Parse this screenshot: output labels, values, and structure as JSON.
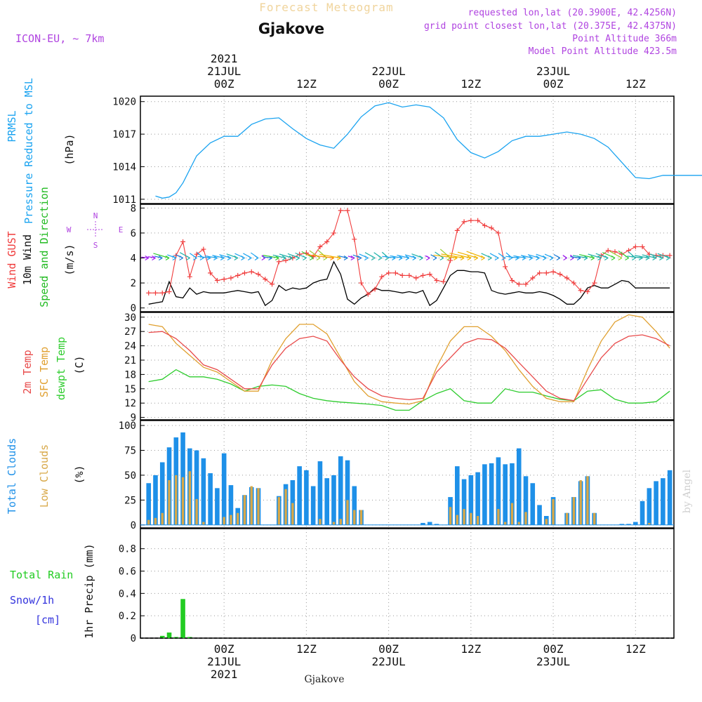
{
  "header": {
    "chart_title": "Forecast Meteogram",
    "location": "Gjakove",
    "model": "ICON-EU, ~ 7km",
    "requested": "requested lon,lat (20.3900E, 42.4256N)",
    "grid_point": "grid point closest lon,lat (20.375E, 42.4375N)",
    "point_altitude": "Point Altitude 366m",
    "model_altitude": "Model Point Altitude 423.5m",
    "bottom_location": "Gjakove",
    "credit": "by Angel"
  },
  "colors": {
    "pressure": "#1aa3f0",
    "gust": "#f03c3c",
    "wind10m": "#000000",
    "dir_green": "#22bb22",
    "temp2m": "#e84a4a",
    "sfc": "#e0a030",
    "dewpt": "#2ecc2e",
    "total_clouds": "#1e90e8",
    "low_clouds": "#d8a848",
    "rain": "#22cc22",
    "snow": "#3333dd",
    "purple": "#b044e0",
    "title": "#f0d49c"
  },
  "chart_data": [
    {
      "type": "line",
      "title": "PRMSL Pressure Reduced to MSL",
      "ylabel_lines": [
        "PRMSL",
        "Pressure Reduced to MSL"
      ],
      "unit": "(hPa)",
      "ylim": [
        1010.6,
        1020.5
      ],
      "yticks": [
        1011,
        1014,
        1017,
        1020
      ],
      "x_hours": [
        -10,
        -9,
        -8,
        -7,
        -6,
        -4,
        -2,
        0,
        2,
        4,
        6,
        8,
        10,
        12,
        14,
        16,
        18,
        20,
        22,
        24,
        26,
        28,
        30,
        32,
        34,
        36,
        38,
        40,
        42,
        44,
        46,
        48,
        50,
        52,
        54,
        56,
        58,
        60,
        62,
        64,
        66,
        68,
        70,
        72
      ],
      "series": [
        {
          "name": "PRMSL",
          "values": [
            1011.3,
            1011.1,
            1011.2,
            1011.6,
            1012.5,
            1015.0,
            1016.2,
            1016.8,
            1016.8,
            1017.9,
            1018.4,
            1018.5,
            1017.5,
            1016.6,
            1016.0,
            1015.7,
            1017.0,
            1018.6,
            1019.6,
            1019.9,
            1019.5,
            1019.7,
            1019.5,
            1018.5,
            1016.5,
            1015.3,
            1014.8,
            1015.4,
            1016.4,
            1016.8,
            1016.8,
            1017.0,
            1017.2,
            1017.0,
            1016.6,
            1015.8,
            1014.4,
            1013.0,
            1012.9,
            1013.2,
            1013.2,
            1013.2,
            1013.2,
            1013.2
          ]
        }
      ]
    },
    {
      "type": "line",
      "title": "Wind GUST, 10m Wind Speed and Direction",
      "ylabel_lines": [
        "Wind GUST",
        "10m Wind",
        "Speed and Direction"
      ],
      "unit": "(m/s)",
      "compass": {
        "north": "N",
        "south": "S",
        "east": "E",
        "west": "W"
      },
      "ylim": [
        -0.3,
        8.3
      ],
      "yticks": [
        0,
        2,
        4,
        6,
        8
      ],
      "x_hours": [
        -11,
        -10,
        -9,
        -8,
        -7,
        -6,
        -5,
        -4,
        -3,
        -2,
        -1,
        0,
        1,
        2,
        3,
        4,
        5,
        6,
        7,
        8,
        9,
        10,
        11,
        12,
        13,
        14,
        15,
        16,
        17,
        18,
        19,
        20,
        21,
        22,
        23,
        24,
        25,
        26,
        27,
        28,
        29,
        30,
        31,
        32,
        33,
        34,
        35,
        36,
        37,
        38,
        39,
        40,
        41,
        42,
        43,
        44,
        45,
        46,
        47,
        48,
        49,
        50,
        51,
        52,
        53,
        54,
        55,
        56,
        57,
        58,
        59,
        60,
        61,
        62,
        63,
        64,
        65
      ],
      "series": [
        {
          "name": "Wind GUST",
          "values": [
            1.2,
            1.2,
            1.2,
            1.3,
            4.2,
            5.3,
            2.5,
            4.3,
            4.7,
            2.8,
            2.2,
            2.3,
            2.4,
            2.6,
            2.8,
            2.9,
            2.7,
            2.3,
            1.9,
            3.7,
            3.8,
            4.0,
            4.3,
            4.4,
            4.1,
            4.9,
            5.3,
            6.0,
            7.8,
            7.8,
            5.5,
            2.0,
            1.1,
            1.5,
            2.5,
            2.8,
            2.8,
            2.6,
            2.6,
            2.4,
            2.6,
            2.7,
            2.2,
            2.1,
            3.8,
            6.2,
            6.9,
            7.0,
            7.0,
            6.6,
            6.4,
            6.0,
            3.3,
            2.2,
            1.9,
            1.9,
            2.4,
            2.8,
            2.8,
            2.9,
            2.7,
            2.4,
            2.0,
            1.4,
            1.3,
            2.0,
            4.2,
            4.6,
            4.5,
            4.3,
            4.6,
            4.9,
            4.9,
            4.3,
            4.2,
            4.2,
            4.2
          ]
        },
        {
          "name": "10m Wind",
          "values": [
            0.3,
            0.4,
            0.5,
            2.1,
            0.9,
            0.8,
            1.6,
            1.1,
            1.3,
            1.2,
            1.2,
            1.2,
            1.3,
            1.4,
            1.3,
            1.2,
            1.3,
            0.2,
            0.6,
            1.8,
            1.4,
            1.6,
            1.5,
            1.6,
            2.0,
            2.2,
            2.3,
            3.7,
            2.7,
            0.7,
            0.3,
            0.8,
            1.1,
            1.6,
            1.4,
            1.4,
            1.3,
            1.2,
            1.3,
            1.2,
            1.4,
            0.2,
            0.6,
            1.6,
            2.6,
            3.0,
            3.0,
            2.9,
            2.9,
            2.8,
            1.4,
            1.2,
            1.1,
            1.2,
            1.3,
            1.2,
            1.2,
            1.3,
            1.2,
            1.0,
            0.7,
            0.3,
            0.3,
            0.8,
            1.6,
            1.8,
            1.6,
            1.6,
            1.9,
            2.2,
            2.1,
            1.6,
            1.6,
            1.6,
            1.6,
            1.6,
            1.6
          ]
        }
      ]
    },
    {
      "type": "line",
      "title": "2m Temp, SFC Temp, dewpt Temp",
      "ylabel_lines": [
        "2m Temp",
        "SFC Temp",
        "dewpt Temp"
      ],
      "unit": "(C)",
      "ylim": [
        8.5,
        31
      ],
      "yticks": [
        9,
        12,
        15,
        18,
        21,
        24,
        27,
        30
      ],
      "x_hours": [
        -11,
        -9,
        -7,
        -5,
        -3,
        -1,
        1,
        3,
        5,
        7,
        9,
        11,
        13,
        15,
        17,
        19,
        21,
        23,
        25,
        27,
        29,
        31,
        33,
        35,
        37,
        39,
        41,
        43,
        45,
        47,
        49,
        51,
        53,
        55,
        57,
        59,
        61,
        63,
        65
      ],
      "series": [
        {
          "name": "2m Temp",
          "values": [
            26.8,
            27.0,
            25.5,
            23.0,
            20.0,
            19.0,
            17.0,
            15.0,
            15.0,
            20.0,
            23.5,
            25.5,
            26.0,
            25.0,
            21.0,
            17.5,
            15.0,
            13.5,
            13.0,
            12.7,
            13.0,
            18.5,
            21.5,
            24.5,
            25.5,
            25.3,
            23.5,
            20.5,
            17.5,
            14.5,
            13.0,
            12.5,
            17.0,
            21.5,
            24.5,
            26.0,
            26.3,
            25.5,
            24.0
          ]
        },
        {
          "name": "SFC Temp",
          "values": [
            28.5,
            28.0,
            24.5,
            22.0,
            19.5,
            18.5,
            16.5,
            14.5,
            14.5,
            21.0,
            25.5,
            28.5,
            28.5,
            26.5,
            21.5,
            16.5,
            13.5,
            12.3,
            12.0,
            11.8,
            12.5,
            19.5,
            25.0,
            28.0,
            28.0,
            26.0,
            23.0,
            19.0,
            15.5,
            13.0,
            12.3,
            12.3,
            19.0,
            25.0,
            29.0,
            30.5,
            30.0,
            27.0,
            23.5
          ]
        },
        {
          "name": "dewpt Temp",
          "values": [
            16.5,
            17.0,
            19.0,
            17.5,
            17.5,
            17.0,
            16.0,
            14.5,
            15.5,
            15.8,
            15.5,
            14.0,
            13.0,
            12.5,
            12.2,
            12.0,
            11.8,
            11.5,
            10.5,
            10.5,
            12.5,
            14.0,
            15.0,
            12.5,
            12.0,
            12.0,
            15.0,
            14.3,
            14.3,
            13.5,
            12.8,
            12.5,
            14.5,
            14.8,
            12.8,
            12.0,
            12.0,
            12.3,
            14.5
          ]
        }
      ]
    },
    {
      "type": "bar",
      "title": "Total Clouds, Low Clouds",
      "ylabel_lines": [
        "Total Clouds",
        "Low Clouds"
      ],
      "unit": "(%)",
      "ylim": [
        -3,
        105
      ],
      "yticks": [
        0,
        25,
        50,
        75,
        100
      ],
      "x_hours": [
        -11,
        -10,
        -9,
        -8,
        -7,
        -6,
        -5,
        -4,
        -3,
        -2,
        -1,
        0,
        1,
        2,
        3,
        4,
        5,
        6,
        7,
        8,
        9,
        10,
        11,
        12,
        13,
        14,
        15,
        16,
        17,
        18,
        19,
        20,
        21,
        22,
        23,
        24,
        25,
        26,
        27,
        28,
        29,
        30,
        31,
        32,
        33,
        34,
        35,
        36,
        37,
        38,
        39,
        40,
        41,
        42,
        43,
        44,
        45,
        46,
        47,
        48,
        49,
        50,
        51,
        52,
        53,
        54,
        55,
        56,
        57,
        58,
        59,
        60,
        61,
        62,
        63,
        64,
        65
      ],
      "series": [
        {
          "name": "Total Clouds",
          "values": [
            42,
            50,
            63,
            78,
            88,
            93,
            77,
            75,
            67,
            52,
            37,
            72,
            40,
            17,
            30,
            38,
            37,
            0,
            0,
            29,
            41,
            45,
            59,
            55,
            39,
            64,
            47,
            50,
            69,
            65,
            39,
            15,
            0,
            0,
            0,
            0,
            0,
            0,
            0,
            0,
            2,
            3,
            1,
            0,
            28,
            59,
            46,
            50,
            53,
            61,
            62,
            68,
            61,
            62,
            77,
            49,
            42,
            20,
            9,
            28,
            0,
            12,
            28,
            44,
            49,
            12,
            0,
            0,
            0,
            1,
            1,
            3,
            24,
            37,
            44,
            47,
            55
          ]
        },
        {
          "name": "Low Clouds",
          "values": [
            5,
            7,
            12,
            45,
            50,
            48,
            54,
            26,
            3,
            0,
            0,
            8,
            10,
            12,
            30,
            39,
            37,
            0,
            0,
            28,
            36,
            22,
            0,
            0,
            0,
            6,
            0,
            3,
            6,
            25,
            15,
            15,
            0,
            0,
            0,
            0,
            0,
            0,
            0,
            0,
            0,
            0,
            0,
            0,
            18,
            10,
            16,
            12,
            9,
            0,
            0,
            16,
            3,
            22,
            3,
            13,
            0,
            0,
            6,
            26,
            0,
            12,
            28,
            45,
            49,
            12,
            0,
            0,
            0,
            0,
            0,
            0,
            0,
            2,
            0,
            0,
            0
          ]
        }
      ]
    },
    {
      "type": "bar",
      "title": "1hr Precip (mm)",
      "ylabel_lines": [
        "Total Rain",
        "Snow/1h",
        "[cm]"
      ],
      "unit": "1hr Precip (mm)",
      "ylim": [
        0,
        0.98
      ],
      "yticks": [
        0,
        0.2,
        0.4,
        0.6,
        0.8
      ],
      "ytick_labels": [
        "0",
        "0.2",
        "0.4",
        "0.6",
        "0.8"
      ],
      "x_hours": [
        -9,
        -8,
        -7,
        -6,
        -5
      ],
      "series": [
        {
          "name": "Total Rain",
          "values": [
            0.02,
            0.05,
            0.01,
            0.35,
            0.01
          ]
        },
        {
          "name": "Snow/1h",
          "values": [
            0,
            0,
            0,
            0,
            0
          ]
        }
      ]
    }
  ],
  "time_axis": {
    "top": [
      {
        "hour": 0,
        "lines": [
          "2021",
          "21JUL",
          "00Z"
        ]
      },
      {
        "hour": 12,
        "lines": [
          "12Z"
        ]
      },
      {
        "hour": 24,
        "lines": [
          "22JUL",
          "00Z"
        ]
      },
      {
        "hour": 36,
        "lines": [
          "12Z"
        ]
      },
      {
        "hour": 48,
        "lines": [
          "23JUL",
          "00Z"
        ]
      },
      {
        "hour": 60,
        "lines": [
          "12Z"
        ]
      }
    ],
    "bottom": [
      {
        "hour": 0,
        "lines": [
          "00Z",
          "21JUL",
          "2021"
        ]
      },
      {
        "hour": 12,
        "lines": [
          "12Z"
        ]
      },
      {
        "hour": 24,
        "lines": [
          "00Z",
          "22JUL"
        ]
      },
      {
        "hour": 36,
        "lines": [
          "12Z"
        ]
      },
      {
        "hour": 48,
        "lines": [
          "00Z",
          "23JUL"
        ]
      },
      {
        "hour": 60,
        "lines": [
          "12Z"
        ]
      }
    ]
  }
}
